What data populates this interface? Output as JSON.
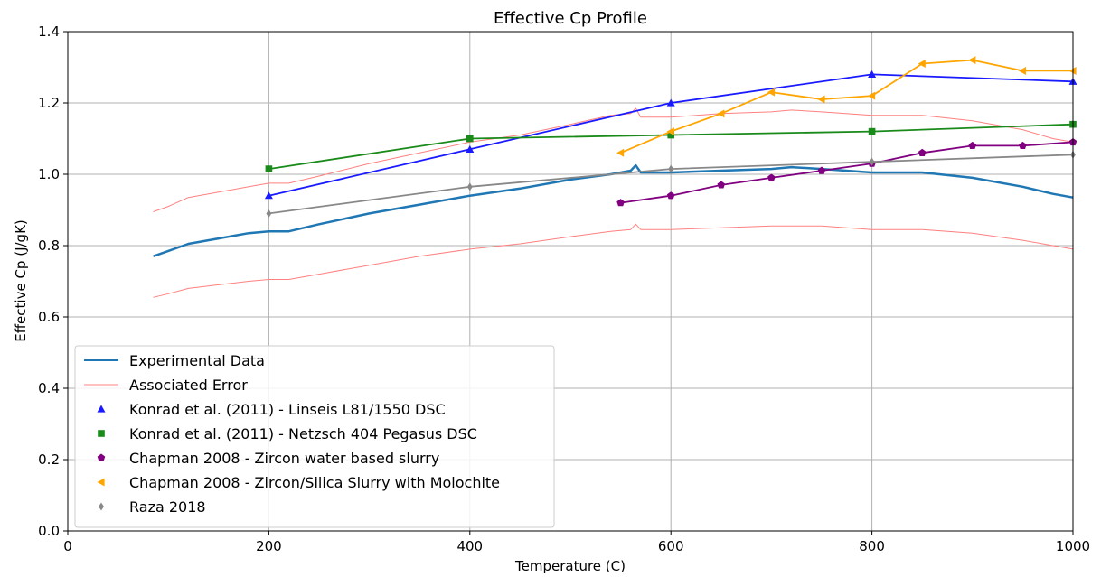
{
  "chart_data": {
    "type": "line",
    "title": "Effective Cp Profile",
    "xlabel": "Temperature (C)",
    "ylabel": "Effective Cp (J/gK)",
    "xlim": [
      0,
      1000
    ],
    "ylim": [
      0.0,
      1.4
    ],
    "xticks": [
      "0",
      "200",
      "400",
      "600",
      "800",
      "1000"
    ],
    "yticks": [
      "0.0",
      "0.2",
      "0.4",
      "0.6",
      "0.8",
      "1.0",
      "1.2",
      "1.4"
    ],
    "grid": true,
    "legend_position": "lower-left",
    "series": [
      {
        "name": "Experimental Data",
        "color": "#1f77b4",
        "marker": "none",
        "style": "thick",
        "x": [
          85,
          100,
          120,
          150,
          180,
          200,
          220,
          250,
          300,
          350,
          400,
          450,
          500,
          540,
          560,
          565,
          570,
          600,
          650,
          700,
          720,
          750,
          800,
          850,
          900,
          950,
          980,
          1000
        ],
        "y": [
          0.77,
          0.785,
          0.805,
          0.82,
          0.835,
          0.84,
          0.84,
          0.86,
          0.89,
          0.915,
          0.94,
          0.96,
          0.985,
          1.0,
          1.01,
          1.025,
          1.005,
          1.005,
          1.01,
          1.015,
          1.02,
          1.015,
          1.005,
          1.005,
          0.99,
          0.965,
          0.945,
          0.935
        ]
      },
      {
        "name": "Associated Error",
        "color": "#ff8080",
        "marker": "none",
        "style": "thin",
        "x": [
          85,
          100,
          120,
          150,
          180,
          200,
          220,
          250,
          300,
          350,
          400,
          450,
          500,
          540,
          560,
          565,
          570,
          600,
          650,
          700,
          720,
          750,
          800,
          850,
          900,
          950,
          980,
          1000
        ],
        "y": [
          0.895,
          0.91,
          0.935,
          0.95,
          0.965,
          0.975,
          0.975,
          0.995,
          1.03,
          1.06,
          1.09,
          1.11,
          1.14,
          1.165,
          1.17,
          1.185,
          1.16,
          1.16,
          1.17,
          1.175,
          1.18,
          1.175,
          1.165,
          1.165,
          1.15,
          1.125,
          1.1,
          1.09
        ]
      },
      {
        "name": "",
        "color": "#ff8080",
        "marker": "none",
        "style": "thin",
        "x": [
          85,
          100,
          120,
          150,
          180,
          200,
          220,
          250,
          300,
          350,
          400,
          450,
          500,
          540,
          560,
          565,
          570,
          600,
          650,
          700,
          720,
          750,
          800,
          850,
          900,
          950,
          980,
          1000
        ],
        "y": [
          0.655,
          0.665,
          0.68,
          0.69,
          0.7,
          0.705,
          0.705,
          0.72,
          0.745,
          0.77,
          0.79,
          0.805,
          0.825,
          0.84,
          0.845,
          0.86,
          0.845,
          0.845,
          0.85,
          0.855,
          0.855,
          0.855,
          0.845,
          0.845,
          0.835,
          0.815,
          0.8,
          0.79
        ]
      },
      {
        "name": "Konrad et al. (2011) - Linseis L81/1550 DSC",
        "color": "#1a1aff",
        "marker": "triangle-up",
        "x": [
          200,
          400,
          600,
          800,
          1000
        ],
        "y": [
          0.94,
          1.07,
          1.2,
          1.28,
          1.26
        ]
      },
      {
        "name": "Konrad et al. (2011) - Netzsch 404 Pegasus DSC",
        "color": "#1a8a1a",
        "marker": "square",
        "x": [
          200,
          400,
          600,
          800,
          1000
        ],
        "y": [
          1.015,
          1.1,
          1.11,
          1.12,
          1.14
        ]
      },
      {
        "name": "Chapman 2008 - Zircon water based slurry",
        "color": "#800080",
        "marker": "pentagon",
        "x": [
          550,
          600,
          650,
          700,
          750,
          800,
          850,
          900,
          950,
          1000
        ],
        "y": [
          0.92,
          0.94,
          0.97,
          0.99,
          1.01,
          1.03,
          1.06,
          1.08,
          1.08,
          1.09
        ]
      },
      {
        "name": "Chapman 2008 - Zircon/Silica Slurry with Molochite",
        "color": "#ffa500",
        "marker": "triangle-left",
        "x": [
          550,
          600,
          650,
          700,
          750,
          800,
          850,
          900,
          950,
          1000
        ],
        "y": [
          1.06,
          1.12,
          1.17,
          1.23,
          1.21,
          1.22,
          1.31,
          1.32,
          1.29,
          1.29
        ]
      },
      {
        "name": "Raza 2018",
        "color": "#888888",
        "marker": "diamond",
        "x": [
          200,
          400,
          600,
          800,
          1000
        ],
        "y": [
          0.89,
          0.965,
          1.015,
          1.035,
          1.055
        ]
      }
    ]
  }
}
